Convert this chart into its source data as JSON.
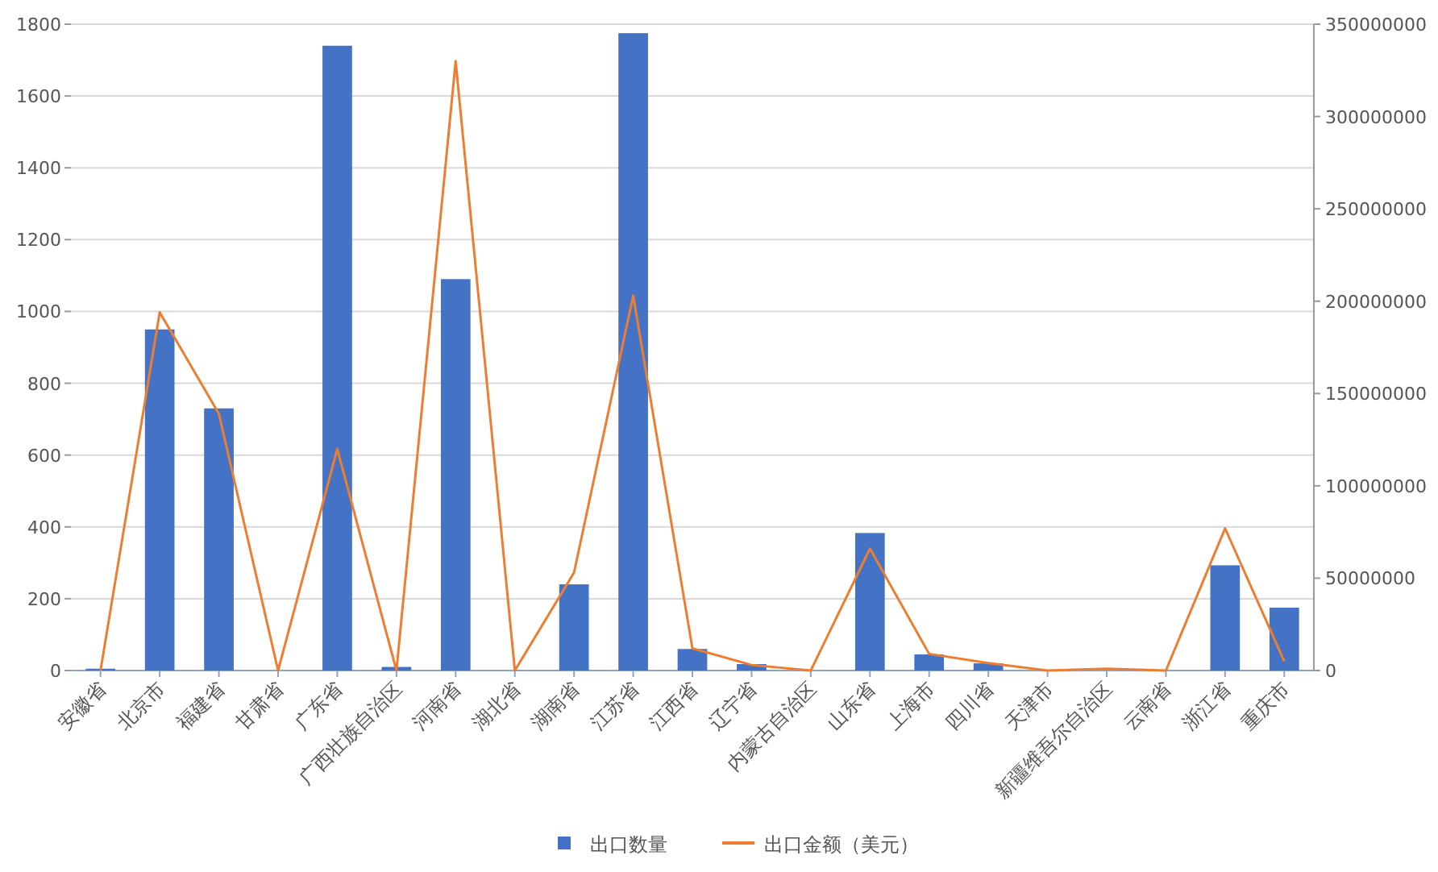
{
  "chart_data": {
    "type": "bar",
    "categories": [
      "安徽省",
      "北京市",
      "福建省",
      "甘肃省",
      "广东省",
      "广西壮族自治区",
      "河南省",
      "湖北省",
      "湖南省",
      "江苏省",
      "江西省",
      "辽宁省",
      "内蒙古自治区",
      "山东省",
      "上海市",
      "四川省",
      "天津市",
      "新疆维吾尔自治区",
      "云南省",
      "浙江省",
      "重庆市"
    ],
    "series": [
      {
        "name": "出口数量",
        "color": "#4472c4",
        "values": [
          5,
          950,
          730,
          0,
          1740,
          10,
          1090,
          0,
          240,
          1775,
          60,
          18,
          0,
          383,
          45,
          20,
          0,
          null,
          0,
          293,
          175
        ]
      },
      {
        "name": "出口金额（美元）",
        "type": "line",
        "axis": "y2",
        "color": "#ed7d31",
        "values": [
          0,
          194000000,
          139000000,
          0,
          120000000,
          0,
          330000000,
          0,
          53000000,
          203000000,
          12000000,
          3000000,
          0,
          66000000,
          9000000,
          4000000,
          0,
          1000000,
          0,
          77000000,
          5000000
        ]
      }
    ],
    "ylim": [
      0,
      1800
    ],
    "yticks": [
      0,
      200,
      400,
      600,
      800,
      1000,
      1200,
      1400,
      1600,
      1800
    ],
    "y2lim": [
      0,
      350000000
    ],
    "y2ticks": [
      0,
      50000000,
      100000000,
      150000000,
      200000000,
      250000000,
      300000000,
      350000000
    ],
    "grid": "y",
    "legend": "bottom"
  }
}
